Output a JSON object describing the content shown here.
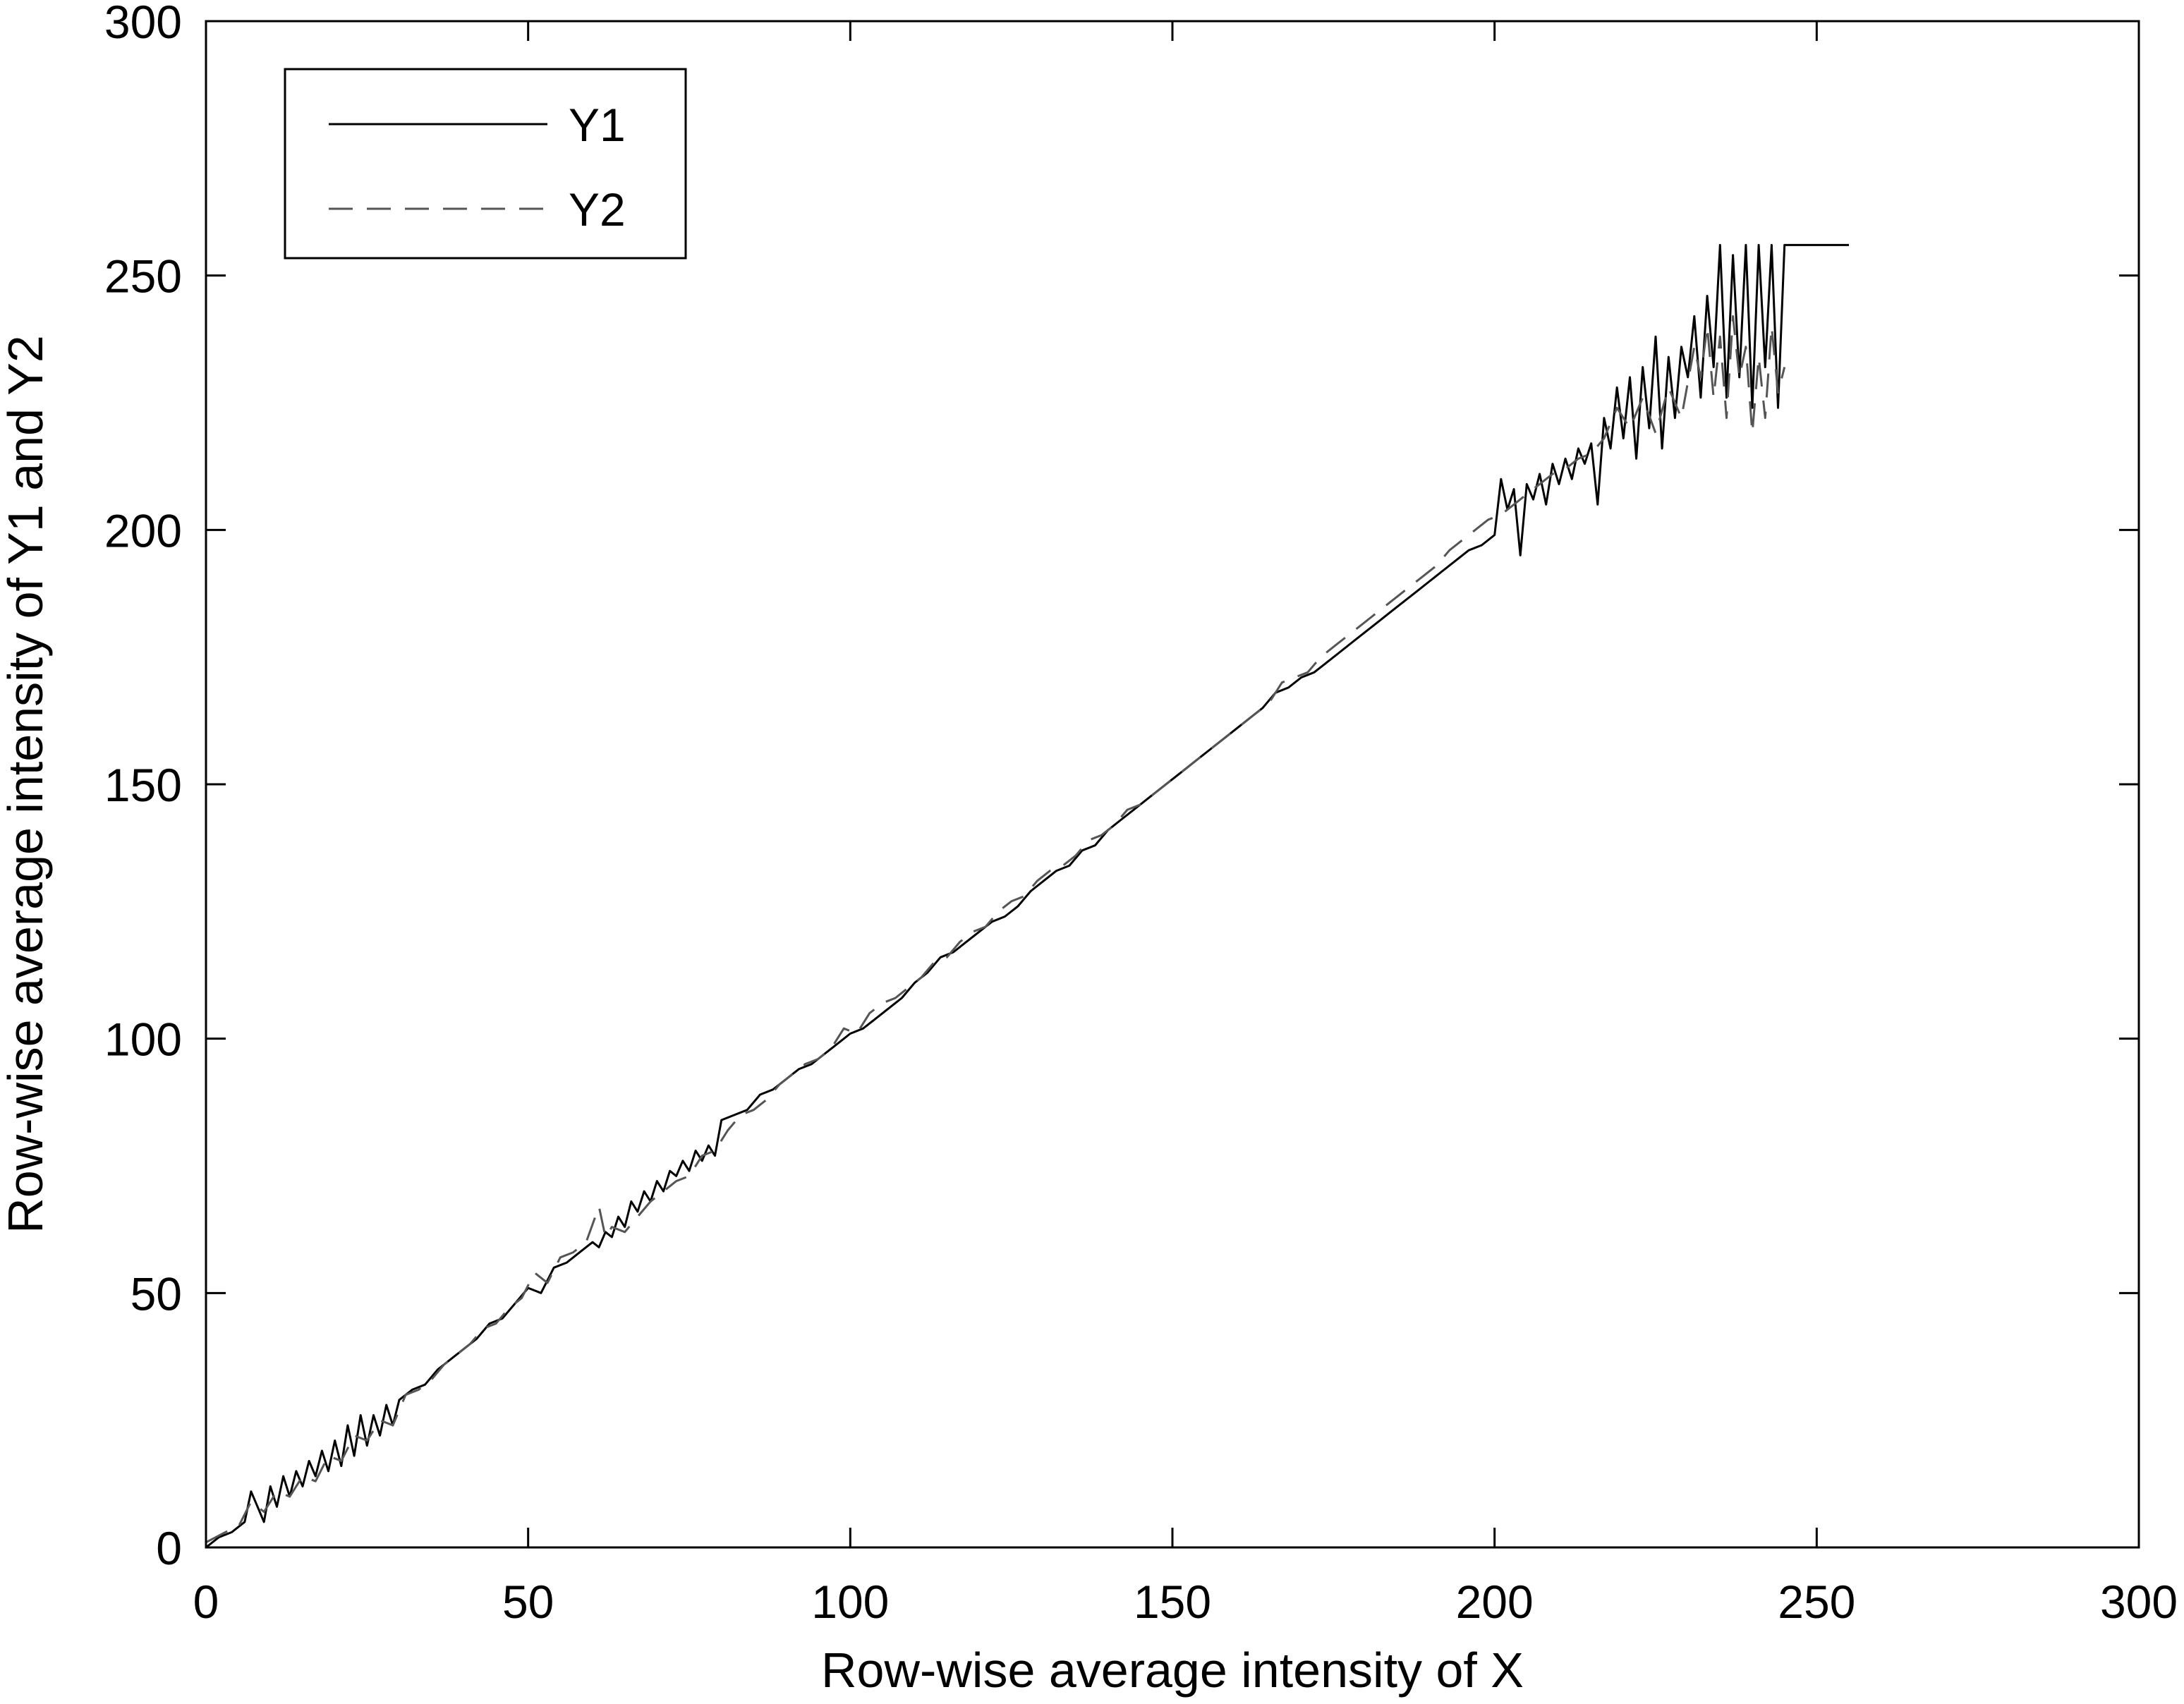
{
  "chart_data": {
    "type": "line",
    "title": "",
    "xlabel": "Row-wise average intensity of X",
    "ylabel": "Row-wise average intensity of Y1 and Y2",
    "xlim": [
      0,
      300
    ],
    "ylim": [
      0,
      300
    ],
    "xticks": [
      0,
      50,
      100,
      150,
      200,
      250,
      300
    ],
    "yticks": [
      0,
      50,
      100,
      150,
      200,
      250,
      300
    ],
    "grid": false,
    "legend_position": "top-left",
    "series": [
      {
        "name": "Y1",
        "style": "solid",
        "color": "#000000",
        "x": [
          0,
          2,
          4,
          6,
          7,
          8,
          9,
          10,
          11,
          12,
          13,
          14,
          15,
          16,
          17,
          18,
          19,
          20,
          21,
          22,
          23,
          24,
          25,
          26,
          27,
          28,
          29,
          30,
          32,
          34,
          36,
          38,
          40,
          42,
          44,
          46,
          48,
          50,
          52,
          54,
          56,
          58,
          60,
          61,
          62,
          63,
          64,
          65,
          66,
          67,
          68,
          69,
          70,
          71,
          72,
          73,
          74,
          75,
          76,
          77,
          78,
          79,
          80,
          82,
          84,
          86,
          88,
          90,
          92,
          94,
          96,
          98,
          100,
          102,
          104,
          106,
          108,
          110,
          112,
          114,
          116,
          118,
          120,
          122,
          124,
          126,
          128,
          130,
          132,
          134,
          136,
          138,
          140,
          142,
          144,
          146,
          148,
          150,
          152,
          154,
          156,
          158,
          160,
          162,
          164,
          166,
          168,
          170,
          172,
          174,
          176,
          178,
          180,
          182,
          184,
          186,
          188,
          190,
          192,
          194,
          196,
          198,
          200,
          201,
          202,
          203,
          204,
          205,
          206,
          207,
          208,
          209,
          210,
          211,
          212,
          213,
          214,
          215,
          216,
          217,
          218,
          219,
          220,
          221,
          222,
          223,
          224,
          225,
          226,
          227,
          228,
          229,
          230,
          231,
          232,
          233,
          234,
          235,
          236,
          237,
          238,
          239,
          240,
          241,
          242,
          243,
          244,
          245,
          250,
          255
        ],
        "y": [
          0,
          2,
          3,
          5,
          11,
          8,
          5,
          12,
          8,
          14,
          10,
          15,
          12,
          17,
          14,
          19,
          15,
          21,
          16,
          24,
          18,
          26,
          20,
          26,
          22,
          28,
          24,
          29,
          31,
          32,
          35,
          37,
          39,
          41,
          44,
          45,
          48,
          51,
          50,
          55,
          56,
          58,
          60,
          59,
          62,
          61,
          65,
          63,
          68,
          66,
          70,
          68,
          72,
          70,
          74,
          73,
          76,
          74,
          78,
          76,
          79,
          77,
          84,
          85,
          86,
          89,
          90,
          92,
          94,
          95,
          97,
          99,
          101,
          102,
          104,
          106,
          108,
          111,
          113,
          116,
          117,
          119,
          121,
          123,
          124,
          126,
          129,
          131,
          133,
          134,
          137,
          138,
          141,
          143,
          145,
          147,
          149,
          151,
          153,
          155,
          157,
          159,
          161,
          163,
          165,
          168,
          169,
          171,
          172,
          174,
          176,
          178,
          180,
          182,
          184,
          186,
          188,
          190,
          192,
          194,
          196,
          197,
          199,
          210,
          204,
          208,
          195,
          209,
          206,
          211,
          205,
          213,
          209,
          214,
          210,
          216,
          213,
          217,
          205,
          222,
          216,
          228,
          218,
          230,
          214,
          232,
          220,
          238,
          216,
          234,
          222,
          236,
          230,
          242,
          226,
          246,
          232,
          256,
          226,
          254,
          230,
          256,
          224,
          256,
          232,
          256,
          224,
          256,
          256,
          256
        ]
      },
      {
        "name": "Y2",
        "style": "dashed",
        "color": "#555555",
        "x": [
          0,
          3,
          5,
          7,
          9,
          11,
          13,
          15,
          17,
          19,
          21,
          23,
          25,
          27,
          29,
          31,
          33,
          35,
          37,
          39,
          41,
          43,
          45,
          47,
          49,
          51,
          53,
          55,
          57,
          59,
          61,
          62,
          63,
          65,
          67,
          69,
          71,
          73,
          75,
          77,
          79,
          81,
          83,
          85,
          87,
          89,
          91,
          93,
          95,
          97,
          99,
          101,
          103,
          105,
          107,
          109,
          111,
          113,
          115,
          117,
          119,
          121,
          123,
          125,
          127,
          129,
          131,
          133,
          135,
          137,
          139,
          141,
          143,
          145,
          147,
          149,
          151,
          153,
          155,
          157,
          159,
          161,
          163,
          165,
          167,
          169,
          171,
          173,
          175,
          177,
          179,
          181,
          183,
          185,
          187,
          189,
          191,
          193,
          195,
          197,
          199,
          201,
          203,
          205,
          207,
          209,
          211,
          213,
          215,
          217,
          219,
          221,
          223,
          225,
          227,
          229,
          231,
          232,
          233,
          234,
          235,
          236,
          237,
          238,
          239,
          240,
          241,
          242,
          243,
          244,
          245
        ],
        "y": [
          1,
          3,
          4,
          9,
          7,
          11,
          10,
          14,
          13,
          18,
          17,
          22,
          21,
          25,
          24,
          30,
          31,
          33,
          36,
          38,
          40,
          43,
          44,
          47,
          49,
          54,
          52,
          57,
          58,
          60,
          67,
          61,
          63,
          62,
          65,
          68,
          70,
          72,
          73,
          77,
          78,
          82,
          85,
          86,
          88,
          91,
          93,
          95,
          96,
          98,
          102,
          101,
          105,
          107,
          108,
          110,
          112,
          115,
          116,
          119,
          121,
          122,
          125,
          127,
          128,
          131,
          133,
          134,
          136,
          139,
          140,
          142,
          145,
          146,
          148,
          150,
          152,
          154,
          156,
          158,
          160,
          162,
          164,
          166,
          170,
          171,
          172,
          175,
          177,
          179,
          181,
          183,
          185,
          187,
          189,
          191,
          193,
          196,
          198,
          200,
          202,
          203,
          205,
          207,
          209,
          211,
          212,
          214,
          215,
          218,
          224,
          220,
          226,
          219,
          228,
          222,
          236,
          230,
          240,
          226,
          238,
          222,
          242,
          230,
          236,
          219,
          234,
          222,
          240,
          227,
          232
        ]
      }
    ]
  }
}
